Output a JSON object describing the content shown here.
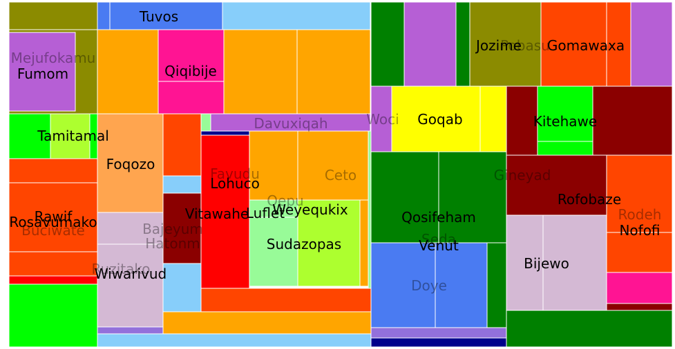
{
  "chart_data": {
    "type": "treemap",
    "nodes": [
      {
        "name": "Tuvos",
        "color": "#4a7bf2",
        "size": 1
      },
      {
        "name": "Mejufokamu",
        "color": "#8b8b00",
        "size": 1
      },
      {
        "name": "Fumom",
        "color": "#b65fd5",
        "size": 1
      },
      {
        "name": "Qiqibije",
        "color": "#ff1493",
        "size": 1
      },
      {
        "name": "Tamitamal",
        "color": "#00ff00",
        "size": 1
      },
      {
        "name": "Davuxiqah",
        "color": "#b65fd5",
        "size": 1
      },
      {
        "name": "Woci",
        "color": "#b65fd5",
        "size": 1
      },
      {
        "name": "Goqab",
        "color": "#ffff00",
        "size": 1
      },
      {
        "name": "Jozime",
        "color": "#8b8b00",
        "size": 1
      },
      {
        "name": "Pobasu",
        "color": "#ff4500",
        "size": 1
      },
      {
        "name": "Gomawaxa",
        "color": "#ff4500",
        "size": 1
      },
      {
        "name": "Kitehawe",
        "color": "#00ff00",
        "size": 1
      },
      {
        "name": "Foqozo",
        "color": "#ffa54f",
        "size": 1
      },
      {
        "name": "Favudu",
        "color": "#ff0000",
        "size": 1
      },
      {
        "name": "Lohuco",
        "color": "#ff0000",
        "size": 1
      },
      {
        "name": "Ceto",
        "color": "#ffa500",
        "size": 1
      },
      {
        "name": "Gineyad",
        "color": "#008000",
        "size": 1
      },
      {
        "name": "Rofobaze",
        "color": "#8b0000",
        "size": 1
      },
      {
        "name": "Rodeh",
        "color": "#ff4500",
        "size": 1
      },
      {
        "name": "Nofofi",
        "color": "#ff4500",
        "size": 1
      },
      {
        "name": "Rawif",
        "color": "#ff4500",
        "size": 1
      },
      {
        "name": "Rosavumako",
        "color": "#ff4500",
        "size": 1
      },
      {
        "name": "Buciwate",
        "color": "#ff4500",
        "size": 1
      },
      {
        "name": "Bajeyum",
        "color": "#d4b9d4",
        "size": 1
      },
      {
        "name": "Hatonm",
        "color": "#d4b9d4",
        "size": 1
      },
      {
        "name": "Vitawahe",
        "color": "#ff0000",
        "size": 1
      },
      {
        "name": "Luflet",
        "color": "#98fb98",
        "size": 1
      },
      {
        "name": "Weyequkix",
        "color": "#adff2f",
        "size": 1
      },
      {
        "name": "Qepu",
        "color": "#adff2f",
        "size": 1
      },
      {
        "name": "Sudazopas",
        "color": "#adff2f",
        "size": 1
      },
      {
        "name": "Qosifeham",
        "color": "#008000",
        "size": 1
      },
      {
        "name": "Venut",
        "color": "#4a7bf2",
        "size": 1
      },
      {
        "name": "Seda",
        "color": "#4a7bf2",
        "size": 1
      },
      {
        "name": "Doye",
        "color": "#4a7bf2",
        "size": 1
      },
      {
        "name": "Bijewo",
        "color": "#d4b9d4",
        "size": 1
      },
      {
        "name": "Wiwarivud",
        "color": "#d4b9d4",
        "size": 1
      },
      {
        "name": "Ruzitako",
        "color": "#d4b9d4",
        "size": 1
      }
    ]
  }
}
